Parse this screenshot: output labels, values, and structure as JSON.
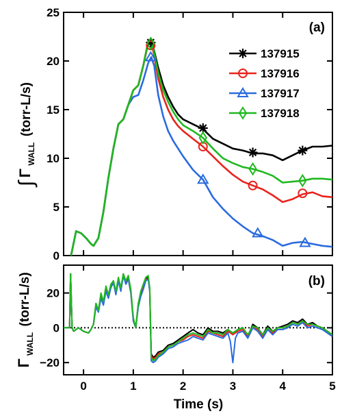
{
  "chart_data": [
    {
      "panel_label": "(a)",
      "type": "line",
      "ylabel_integral_sign": "∫",
      "ylabel_symbol": "Γ",
      "ylabel_subscript": "WALL",
      "ylabel_units": "(torr-L/s)",
      "xlim": [
        -0.4,
        5
      ],
      "ylim": [
        0,
        25
      ],
      "yticks": [
        0,
        5,
        10,
        15,
        20,
        25
      ],
      "legend_position": "top-right",
      "series": [
        {
          "name": "137915",
          "color": "#000000",
          "marker": "asterisk",
          "x": [
            -0.25,
            -0.15,
            -0.05,
            0.05,
            0.15,
            0.2,
            0.3,
            0.4,
            0.5,
            0.6,
            0.7,
            0.8,
            0.9,
            1.0,
            1.1,
            1.2,
            1.3,
            1.36,
            1.42,
            1.5,
            1.6,
            1.7,
            1.8,
            1.9,
            2.0,
            2.2,
            2.4,
            2.6,
            2.8,
            3.0,
            3.2,
            3.4,
            3.6,
            3.8,
            4.0,
            4.2,
            4.4,
            4.6,
            4.8,
            5.0
          ],
          "y": [
            0,
            2.5,
            2.3,
            1.8,
            1.2,
            1.0,
            1.8,
            4.5,
            8,
            11,
            13.5,
            14,
            15.5,
            17,
            17.5,
            19.5,
            22,
            22.2,
            21,
            19.3,
            17.5,
            16.3,
            15.3,
            14.5,
            14,
            13.5,
            13,
            12,
            11.5,
            11,
            10.8,
            10.5,
            10.5,
            10.3,
            9.8,
            10.3,
            10.8,
            11.2,
            11.2,
            11.3
          ],
          "markers": [
            [
              1.35,
              21.9
            ],
            [
              2.4,
              13.1
            ],
            [
              3.4,
              10.6
            ],
            [
              4.4,
              10.8
            ]
          ]
        },
        {
          "name": "137916",
          "color": "#e8231d",
          "marker": "circle",
          "x": [
            -0.25,
            -0.15,
            -0.05,
            0.05,
            0.15,
            0.2,
            0.3,
            0.4,
            0.5,
            0.6,
            0.7,
            0.8,
            0.9,
            1.0,
            1.1,
            1.2,
            1.3,
            1.36,
            1.42,
            1.5,
            1.6,
            1.7,
            1.8,
            1.9,
            2.0,
            2.2,
            2.4,
            2.6,
            2.8,
            3.0,
            3.2,
            3.4,
            3.6,
            3.8,
            4.0,
            4.2,
            4.4,
            4.6,
            4.8,
            5.0
          ],
          "y": [
            0,
            2.5,
            2.3,
            1.8,
            1.2,
            1.0,
            1.8,
            4.5,
            8,
            11,
            13.5,
            14,
            15.5,
            17,
            17.5,
            19.5,
            21.8,
            22,
            20.5,
            18.2,
            16.3,
            15,
            14,
            13.3,
            12.8,
            12,
            11.2,
            10.2,
            9.2,
            8.3,
            7.6,
            7.2,
            6.8,
            6.2,
            5.5,
            5.8,
            6.3,
            6.5,
            6.1,
            6.0
          ],
          "markers": [
            [
              1.35,
              21.6
            ],
            [
              2.4,
              11.2
            ],
            [
              3.4,
              7.2
            ],
            [
              4.4,
              6.4
            ]
          ]
        },
        {
          "name": "137917",
          "color": "#2a6bde",
          "marker": "triangle",
          "x": [
            -0.25,
            -0.15,
            -0.05,
            0.05,
            0.15,
            0.2,
            0.3,
            0.4,
            0.5,
            0.6,
            0.7,
            0.8,
            0.9,
            1.0,
            1.1,
            1.2,
            1.3,
            1.36,
            1.42,
            1.5,
            1.6,
            1.7,
            1.8,
            1.9,
            2.0,
            2.2,
            2.4,
            2.6,
            2.8,
            3.0,
            3.2,
            3.4,
            3.6,
            3.8,
            4.0,
            4.2,
            4.4,
            4.6,
            4.8,
            5.0
          ],
          "y": [
            0,
            2.5,
            2.3,
            1.8,
            1.2,
            1.0,
            1.8,
            4.5,
            8,
            11,
            13.5,
            14,
            15.5,
            16.3,
            16.5,
            18,
            19.8,
            20.4,
            19.5,
            16.5,
            14.3,
            12.8,
            11.8,
            11,
            10.2,
            8.8,
            7.8,
            6,
            4.8,
            3.8,
            3,
            2.3,
            2,
            1.6,
            1.0,
            1.3,
            1.4,
            1.2,
            1.0,
            0.9
          ],
          "markers": [
            [
              1.35,
              20.4
            ],
            [
              2.4,
              7.8
            ],
            [
              3.5,
              2.3
            ],
            [
              4.45,
              1.3
            ]
          ]
        },
        {
          "name": "137918",
          "color": "#1fb81f",
          "marker": "diamond",
          "x": [
            -0.25,
            -0.15,
            -0.05,
            0.05,
            0.15,
            0.2,
            0.3,
            0.4,
            0.5,
            0.6,
            0.7,
            0.8,
            0.9,
            1.0,
            1.1,
            1.2,
            1.3,
            1.36,
            1.42,
            1.5,
            1.6,
            1.7,
            1.8,
            1.9,
            2.0,
            2.2,
            2.4,
            2.6,
            2.8,
            3.0,
            3.2,
            3.4,
            3.6,
            3.8,
            4.0,
            4.2,
            4.4,
            4.6,
            4.8,
            5.0
          ],
          "y": [
            0,
            2.5,
            2.3,
            1.8,
            1.2,
            1.0,
            1.8,
            4.5,
            8,
            11,
            13.5,
            14,
            15.5,
            17,
            17.5,
            19.5,
            22,
            22.3,
            20.8,
            18.8,
            17,
            15.8,
            14.8,
            14,
            13.4,
            12.8,
            12.1,
            11,
            10,
            9.5,
            9.1,
            8.9,
            8.6,
            8.2,
            7.5,
            7.6,
            7.7,
            7.9,
            7.9,
            7.8
          ],
          "markers": [
            [
              1.35,
              21.8
            ],
            [
              2.4,
              12.1
            ],
            [
              3.4,
              8.9
            ],
            [
              4.4,
              7.7
            ]
          ]
        }
      ]
    },
    {
      "panel_label": "(b)",
      "type": "line",
      "ylabel_symbol": "Γ",
      "ylabel_subscript": "WALL",
      "ylabel_units": "(torr-L/s)",
      "xlabel": "Time (s)",
      "xlim": [
        -0.4,
        5
      ],
      "ylim": [
        -27,
        36
      ],
      "yticks": [
        -20,
        0,
        20
      ],
      "xticks": [
        0,
        1,
        2,
        3,
        4,
        5
      ],
      "zero_line": "dotted",
      "series": [
        {
          "name": "137915",
          "color": "#000000",
          "x": [
            -0.4,
            -0.28,
            -0.26,
            -0.23,
            -0.2,
            -0.1,
            0,
            0.1,
            0.15,
            0.2,
            0.25,
            0.3,
            0.35,
            0.4,
            0.45,
            0.5,
            0.55,
            0.6,
            0.65,
            0.7,
            0.75,
            0.8,
            0.85,
            0.9,
            0.95,
            1.0,
            1.05,
            1.1,
            1.15,
            1.2,
            1.25,
            1.3,
            1.33,
            1.36,
            1.4,
            1.45,
            1.5,
            1.6,
            1.7,
            1.8,
            1.9,
            2.0,
            2.1,
            2.2,
            2.3,
            2.4,
            2.5,
            2.6,
            2.7,
            2.8,
            2.9,
            3.0,
            3.1,
            3.2,
            3.3,
            3.4,
            3.5,
            3.6,
            3.7,
            3.8,
            3.9,
            4.0,
            4.1,
            4.2,
            4.3,
            4.4,
            4.5,
            4.6,
            4.7,
            4.8,
            4.9,
            5.0
          ],
          "y": [
            0,
            0,
            31,
            0,
            -2,
            0,
            -2,
            -3,
            -1,
            2,
            14,
            10,
            18,
            14,
            23,
            18,
            24,
            27,
            20,
            27,
            22,
            31,
            26,
            29,
            21,
            5,
            0,
            14,
            20,
            24,
            28,
            29,
            22,
            -15,
            -17,
            -16,
            -14,
            -13,
            -10,
            -9,
            -7,
            -5,
            -3,
            -1,
            -3,
            -4,
            0,
            -2,
            -2,
            -3,
            -1,
            -3,
            -1,
            0,
            -5,
            2,
            0,
            -4,
            1,
            -2,
            0,
            1,
            2,
            4,
            3,
            5,
            2,
            3,
            1,
            0,
            -2,
            -4
          ]
        },
        {
          "name": "137916",
          "color": "#e8231d",
          "x": [
            -0.4,
            -0.28,
            -0.26,
            -0.23,
            -0.2,
            -0.1,
            0,
            0.1,
            0.15,
            0.2,
            0.25,
            0.3,
            0.35,
            0.4,
            0.45,
            0.5,
            0.55,
            0.6,
            0.65,
            0.7,
            0.75,
            0.8,
            0.85,
            0.9,
            0.95,
            1.0,
            1.05,
            1.1,
            1.15,
            1.2,
            1.25,
            1.3,
            1.33,
            1.36,
            1.4,
            1.45,
            1.5,
            1.6,
            1.7,
            1.8,
            1.9,
            2.0,
            2.1,
            2.2,
            2.3,
            2.4,
            2.5,
            2.6,
            2.7,
            2.8,
            2.9,
            3.0,
            3.1,
            3.2,
            3.3,
            3.4,
            3.5,
            3.6,
            3.7,
            3.8,
            3.9,
            4.0,
            4.1,
            4.2,
            4.3,
            4.4,
            4.5,
            4.6,
            4.7,
            4.8,
            4.9,
            5.0
          ],
          "y": [
            0,
            0,
            31,
            0,
            -2,
            0,
            -2,
            -3,
            -1,
            2,
            13,
            10,
            19,
            14,
            22,
            18,
            25,
            26,
            20,
            28,
            22,
            30,
            26,
            28,
            20,
            4,
            0,
            13,
            20,
            24,
            28,
            28,
            22,
            -16,
            -18,
            -17,
            -15,
            -14,
            -11,
            -10,
            -8,
            -7,
            -5,
            -4,
            -5,
            -6,
            -2,
            -3,
            -4,
            -5,
            -2,
            -4,
            -2,
            -1,
            -5,
            1,
            -1,
            -5,
            0,
            -3,
            0,
            0,
            1,
            3,
            2,
            4,
            1,
            2,
            1,
            0,
            -3,
            -5
          ]
        },
        {
          "name": "137917",
          "color": "#2a6bde",
          "x": [
            -0.4,
            -0.28,
            -0.26,
            -0.23,
            -0.2,
            -0.1,
            0,
            0.1,
            0.15,
            0.2,
            0.25,
            0.3,
            0.35,
            0.4,
            0.45,
            0.5,
            0.55,
            0.6,
            0.65,
            0.7,
            0.75,
            0.8,
            0.85,
            0.9,
            0.95,
            1.0,
            1.05,
            1.1,
            1.15,
            1.2,
            1.25,
            1.3,
            1.33,
            1.36,
            1.4,
            1.45,
            1.5,
            1.6,
            1.7,
            1.8,
            1.9,
            2.0,
            2.1,
            2.2,
            2.3,
            2.4,
            2.5,
            2.6,
            2.7,
            2.8,
            2.9,
            2.95,
            3.0,
            3.05,
            3.1,
            3.2,
            3.3,
            3.4,
            3.5,
            3.6,
            3.7,
            3.8,
            3.9,
            4.0,
            4.1,
            4.2,
            4.3,
            4.4,
            4.5,
            4.6,
            4.7,
            4.8,
            4.9,
            5.0
          ],
          "y": [
            0,
            0,
            31,
            0,
            -2,
            0,
            -2,
            -3,
            -1,
            2,
            12,
            9,
            17,
            13,
            21,
            17,
            23,
            26,
            19,
            27,
            21,
            30,
            25,
            28,
            20,
            4,
            0,
            12,
            18,
            22,
            27,
            28,
            21,
            -19,
            -20,
            -19,
            -17,
            -15,
            -12,
            -11,
            -9,
            -8,
            -7,
            -5,
            -6,
            -7,
            -3,
            -4,
            -5,
            -6,
            -3,
            -8,
            -20,
            -6,
            -3,
            -2,
            -6,
            0,
            -2,
            -6,
            -1,
            -4,
            -1,
            -1,
            0,
            2,
            1,
            3,
            0,
            1,
            0,
            -1,
            -3,
            -5
          ]
        },
        {
          "name": "137918",
          "color": "#1fb81f",
          "x": [
            -0.4,
            -0.28,
            -0.26,
            -0.23,
            -0.2,
            -0.1,
            0,
            0.1,
            0.15,
            0.2,
            0.25,
            0.3,
            0.35,
            0.4,
            0.45,
            0.5,
            0.55,
            0.6,
            0.65,
            0.7,
            0.75,
            0.8,
            0.85,
            0.9,
            0.95,
            1.0,
            1.05,
            1.1,
            1.15,
            1.2,
            1.25,
            1.3,
            1.33,
            1.36,
            1.4,
            1.45,
            1.5,
            1.6,
            1.7,
            1.8,
            1.9,
            2.0,
            2.1,
            2.2,
            2.3,
            2.4,
            2.5,
            2.6,
            2.7,
            2.8,
            2.9,
            3.0,
            3.1,
            3.2,
            3.3,
            3.4,
            3.5,
            3.6,
            3.7,
            3.8,
            3.9,
            4.0,
            4.1,
            4.2,
            4.3,
            4.4,
            4.5,
            4.6,
            4.7,
            4.8,
            4.9,
            5.0
          ],
          "y": [
            0,
            0,
            31,
            0,
            -2,
            0,
            -2,
            -3,
            -1,
            2,
            14,
            10,
            20,
            15,
            24,
            19,
            25,
            27,
            21,
            29,
            23,
            31,
            27,
            30,
            22,
            6,
            0,
            14,
            21,
            25,
            29,
            30,
            23,
            -17,
            -19,
            -18,
            -16,
            -14,
            -11,
            -10,
            -8,
            -6,
            -4,
            -3,
            -4,
            -5,
            -1,
            -3,
            -3,
            -4,
            -1,
            -3,
            -1,
            0,
            -4,
            1,
            0,
            -4,
            0,
            -2,
            0,
            0,
            1,
            3,
            2,
            4,
            2,
            2,
            1,
            0,
            -2,
            -4
          ]
        }
      ]
    }
  ]
}
